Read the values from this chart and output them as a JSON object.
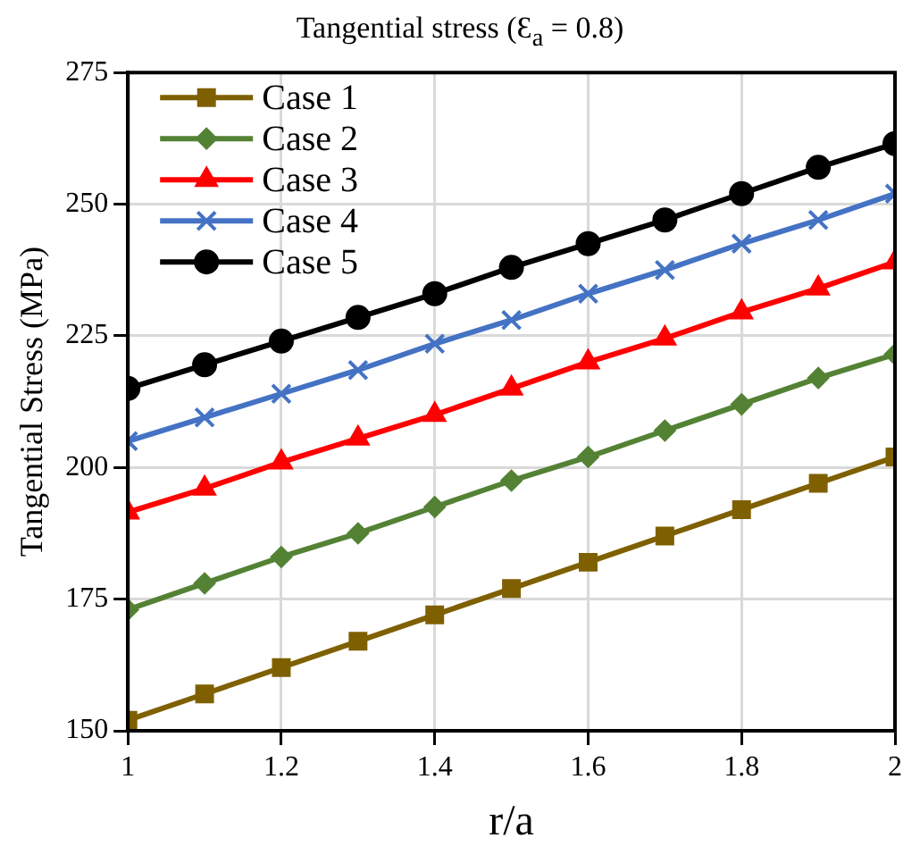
{
  "chart_data": {
    "type": "line",
    "title": "Tangential stress (Ɛ$_{a}$ = 0.8)",
    "xlabel": "r/a",
    "ylabel": "Tangential Stress (MPa)",
    "x": [
      1,
      1.1,
      1.2,
      1.3,
      1.4,
      1.5,
      1.6,
      1.7,
      1.8,
      1.9,
      2
    ],
    "series": [
      {
        "name": "Case 1",
        "color": "#7f6000",
        "marker": "square",
        "values": [
          152,
          157,
          162,
          167,
          172,
          177,
          182,
          187,
          192,
          197,
          202
        ]
      },
      {
        "name": "Case 2",
        "color": "#548235",
        "marker": "diamond",
        "values": [
          173,
          178,
          183,
          187.5,
          192.5,
          197.5,
          202,
          207,
          212,
          217,
          221.5
        ]
      },
      {
        "name": "Case 3",
        "color": "#ff0000",
        "marker": "triangle",
        "values": [
          191.5,
          196,
          201,
          205.5,
          210,
          215,
          220,
          224.5,
          229.5,
          234,
          239
        ]
      },
      {
        "name": "Case 4",
        "color": "#4472c4",
        "marker": "cross",
        "values": [
          205,
          209.5,
          214,
          218.5,
          223.5,
          228,
          233,
          237.5,
          242.5,
          247,
          252
        ]
      },
      {
        "name": "Case 5",
        "color": "#000000",
        "marker": "circle",
        "values": [
          215,
          219.5,
          224,
          228.5,
          233,
          238,
          242.5,
          247,
          252,
          257,
          261.5
        ]
      }
    ],
    "xlim": [
      1,
      2
    ],
    "xticks": [
      1,
      1.2,
      1.4,
      1.6,
      1.8,
      2
    ],
    "ylim": [
      150,
      275
    ],
    "yticks": [
      150,
      175,
      200,
      225,
      250,
      275
    ],
    "grid": true,
    "legend": "top left",
    "line_style": "solid"
  }
}
